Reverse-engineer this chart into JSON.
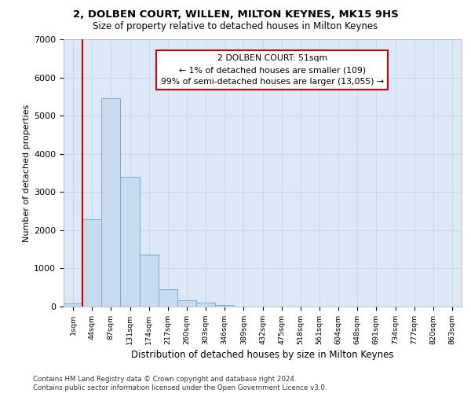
{
  "title_line1": "2, DOLBEN COURT, WILLEN, MILTON KEYNES, MK15 9HS",
  "title_line2": "Size of property relative to detached houses in Milton Keynes",
  "xlabel": "Distribution of detached houses by size in Milton Keynes",
  "ylabel": "Number of detached properties",
  "footnote": "Contains HM Land Registry data © Crown copyright and database right 2024.\nContains public sector information licensed under the Open Government Licence v3.0.",
  "annotation_title": "2 DOLBEN COURT: 51sqm",
  "annotation_line2": "← 1% of detached houses are smaller (109)",
  "annotation_line3": "99% of semi-detached houses are larger (13,055) →",
  "bar_color": "#c8daee",
  "bar_edge_color": "#7aabce",
  "vline_color": "#cc0000",
  "annotation_box_edge_color": "#cc0000",
  "categories": [
    "1sqm",
    "44sqm",
    "87sqm",
    "131sqm",
    "174sqm",
    "217sqm",
    "260sqm",
    "303sqm",
    "346sqm",
    "389sqm",
    "432sqm",
    "475sqm",
    "518sqm",
    "561sqm",
    "604sqm",
    "648sqm",
    "691sqm",
    "734sqm",
    "777sqm",
    "820sqm",
    "863sqm"
  ],
  "values": [
    80,
    2280,
    5450,
    3400,
    1350,
    460,
    175,
    100,
    50,
    10,
    5,
    0,
    0,
    0,
    0,
    0,
    0,
    0,
    0,
    0,
    0
  ],
  "ylim": [
    0,
    7000
  ],
  "yticks": [
    0,
    1000,
    2000,
    3000,
    4000,
    5000,
    6000,
    7000
  ],
  "grid_color": "#c8d8ec",
  "background_color": "#dce8f5"
}
